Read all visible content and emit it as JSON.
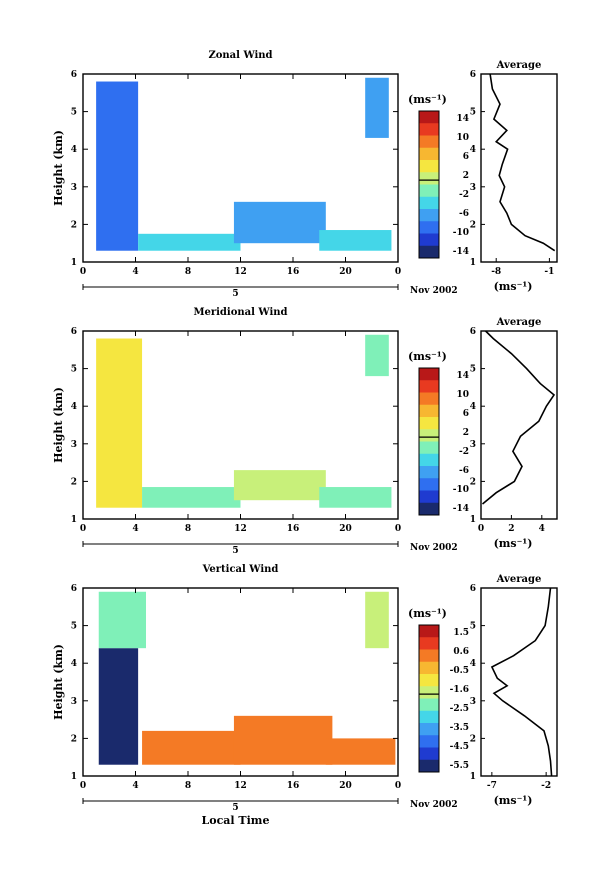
{
  "chart_data": [
    {
      "type": "heatmap",
      "title": "Zonal Wind",
      "ylabel": "Height (km)",
      "xticks": [
        "0",
        "4",
        "8",
        "12",
        "16",
        "20",
        "0"
      ],
      "xlim": [
        0,
        24
      ],
      "yticks": [
        "1",
        "2",
        "3",
        "4",
        "5",
        "6"
      ],
      "ylim": [
        1,
        6
      ],
      "day_label": "5",
      "date_label": "Nov 2002",
      "colorbar": {
        "unit_label": "(ms⁻¹)",
        "ticks": [
          "14",
          "10",
          "6",
          "2",
          "-2",
          "-6",
          "-10",
          "-14"
        ],
        "range": [
          -16,
          16
        ]
      },
      "fields": [
        {
          "t0": 1.0,
          "t1": 4.2,
          "z0": 1.3,
          "z1": 5.8,
          "value": -9
        },
        {
          "t0": 4.2,
          "t1": 12.0,
          "z0": 1.3,
          "z1": 1.75,
          "value": -3
        },
        {
          "t0": 11.5,
          "t1": 18.5,
          "z0": 1.5,
          "z1": 2.6,
          "value": -7
        },
        {
          "t0": 18.0,
          "t1": 23.5,
          "z0": 1.3,
          "z1": 1.85,
          "value": -4
        },
        {
          "t0": 21.5,
          "t1": 23.3,
          "z0": 4.3,
          "z1": 5.9,
          "value": -8
        }
      ],
      "average": {
        "title": "Average",
        "xlabel": "(ms⁻¹)",
        "xticks": [
          "-8",
          "-1"
        ],
        "xlim": [
          -10,
          0
        ],
        "ylim": [
          1,
          6
        ],
        "yticks": [
          "1",
          "2",
          "3",
          "4",
          "5",
          "6"
        ],
        "profile": [
          {
            "z": 1.3,
            "v": -0.3
          },
          {
            "z": 1.5,
            "v": -1.8
          },
          {
            "z": 1.7,
            "v": -4.2
          },
          {
            "z": 2.0,
            "v": -6.0
          },
          {
            "z": 2.3,
            "v": -6.6
          },
          {
            "z": 2.6,
            "v": -7.5
          },
          {
            "z": 3.0,
            "v": -6.9
          },
          {
            "z": 3.3,
            "v": -7.6
          },
          {
            "z": 3.6,
            "v": -7.2
          },
          {
            "z": 4.0,
            "v": -6.5
          },
          {
            "z": 4.2,
            "v": -8.0
          },
          {
            "z": 4.5,
            "v": -6.6
          },
          {
            "z": 4.8,
            "v": -8.3
          },
          {
            "z": 5.2,
            "v": -7.5
          },
          {
            "z": 5.6,
            "v": -8.5
          },
          {
            "z": 6.0,
            "v": -8.8
          }
        ]
      }
    },
    {
      "type": "heatmap",
      "title": "Meridional Wind",
      "ylabel": "Height (km)",
      "xticks": [
        "0",
        "4",
        "8",
        "12",
        "16",
        "20",
        "0"
      ],
      "xlim": [
        0,
        24
      ],
      "yticks": [
        "1",
        "2",
        "3",
        "4",
        "5",
        "6"
      ],
      "ylim": [
        1,
        6
      ],
      "day_label": "5",
      "date_label": "Nov 2002",
      "colorbar": {
        "unit_label": "(ms⁻¹)",
        "ticks": [
          "14",
          "10",
          "6",
          "2",
          "-2",
          "-6",
          "-10",
          "-14"
        ],
        "range": [
          -16,
          16
        ]
      },
      "fields": [
        {
          "t0": 1.0,
          "t1": 4.5,
          "z0": 1.3,
          "z1": 5.8,
          "value": 4
        },
        {
          "t0": 4.5,
          "t1": 12.0,
          "z0": 1.3,
          "z1": 1.85,
          "value": -1
        },
        {
          "t0": 11.5,
          "t1": 18.5,
          "z0": 1.5,
          "z1": 2.3,
          "value": 1
        },
        {
          "t0": 18.0,
          "t1": 23.5,
          "z0": 1.3,
          "z1": 1.85,
          "value": -2
        },
        {
          "t0": 21.5,
          "t1": 23.3,
          "z0": 4.8,
          "z1": 5.9,
          "value": -1
        }
      ],
      "average": {
        "title": "Average",
        "xlabel": "(ms⁻¹)",
        "xticks": [
          "0",
          "2",
          "4"
        ],
        "xlim": [
          0,
          5
        ],
        "ylim": [
          1,
          6
        ],
        "yticks": [
          "1",
          "2",
          "3",
          "4",
          "5",
          "6"
        ],
        "profile": [
          {
            "z": 1.4,
            "v": 0.1
          },
          {
            "z": 1.7,
            "v": 1.0
          },
          {
            "z": 2.0,
            "v": 2.2
          },
          {
            "z": 2.4,
            "v": 2.7
          },
          {
            "z": 2.8,
            "v": 2.1
          },
          {
            "z": 3.2,
            "v": 2.6
          },
          {
            "z": 3.6,
            "v": 3.8
          },
          {
            "z": 4.0,
            "v": 4.3
          },
          {
            "z": 4.3,
            "v": 4.8
          },
          {
            "z": 4.6,
            "v": 3.9
          },
          {
            "z": 5.0,
            "v": 3.0
          },
          {
            "z": 5.4,
            "v": 2.0
          },
          {
            "z": 5.8,
            "v": 0.8
          },
          {
            "z": 6.0,
            "v": 0.3
          }
        ]
      }
    },
    {
      "type": "heatmap",
      "title": "Vertical Wind",
      "ylabel": "Height (km)",
      "xlabel": "Local Time",
      "xticks": [
        "0",
        "4",
        "8",
        "12",
        "16",
        "20",
        "0"
      ],
      "xlim": [
        0,
        24
      ],
      "yticks": [
        "1",
        "2",
        "3",
        "4",
        "5",
        "6"
      ],
      "ylim": [
        1,
        6
      ],
      "day_label": "5",
      "date_label": "Nov 2002",
      "colorbar": {
        "unit_label": "(ms⁻¹)",
        "ticks": [
          "1.5",
          "0.6",
          "-0.5",
          "-1.6",
          "-2.5",
          "-3.5",
          "-4.5",
          "-5.5"
        ],
        "range": [
          -6,
          2
        ]
      },
      "fields": [
        {
          "t0": 1.2,
          "t1": 4.2,
          "z0": 1.3,
          "z1": 4.4,
          "value": -6
        },
        {
          "t0": 1.2,
          "t1": 4.8,
          "z0": 4.4,
          "z1": 5.9,
          "value": -2.2
        },
        {
          "t0": 4.5,
          "t1": 12.0,
          "z0": 1.3,
          "z1": 2.2,
          "value": 0.5
        },
        {
          "t0": 11.5,
          "t1": 19.0,
          "z0": 1.3,
          "z1": 2.6,
          "value": 0.4
        },
        {
          "t0": 18.5,
          "t1": 23.8,
          "z0": 1.3,
          "z1": 2.0,
          "value": 0.6
        },
        {
          "t0": 21.5,
          "t1": 23.3,
          "z0": 4.4,
          "z1": 5.9,
          "value": -2
        }
      ],
      "average": {
        "title": "Average",
        "xlabel": "(ms⁻¹)",
        "xticks": [
          "-7",
          "-2"
        ],
        "xlim": [
          -8,
          -1
        ],
        "ylim": [
          1,
          6
        ],
        "yticks": [
          "1",
          "2",
          "3",
          "4",
          "5",
          "6"
        ],
        "profile": [
          {
            "z": 1.0,
            "v": -1.5
          },
          {
            "z": 1.4,
            "v": -1.6
          },
          {
            "z": 1.8,
            "v": -1.8
          },
          {
            "z": 2.2,
            "v": -2.2
          },
          {
            "z": 2.6,
            "v": -4.0
          },
          {
            "z": 3.0,
            "v": -6.0
          },
          {
            "z": 3.2,
            "v": -6.8
          },
          {
            "z": 3.4,
            "v": -5.6
          },
          {
            "z": 3.6,
            "v": -6.5
          },
          {
            "z": 3.9,
            "v": -7.0
          },
          {
            "z": 4.2,
            "v": -5.0
          },
          {
            "z": 4.6,
            "v": -3.0
          },
          {
            "z": 5.0,
            "v": -2.1
          },
          {
            "z": 5.5,
            "v": -1.8
          },
          {
            "z": 6.0,
            "v": -1.6
          }
        ]
      }
    }
  ]
}
